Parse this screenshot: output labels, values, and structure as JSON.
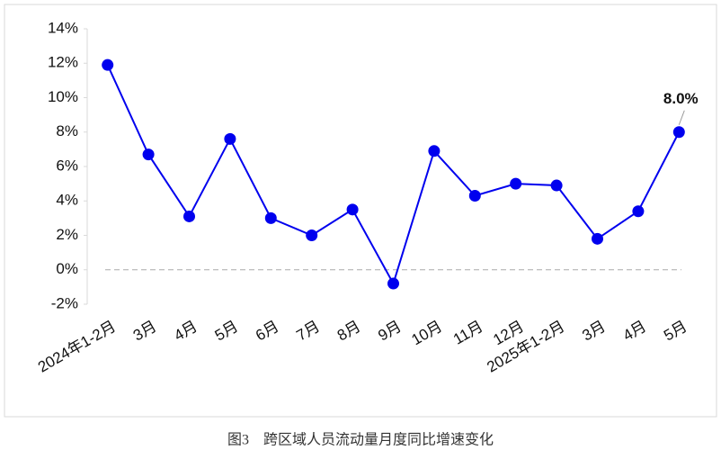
{
  "chart_data": {
    "type": "line",
    "caption": "图3　跨区域人员流动量月度同比增速变化",
    "categories": [
      "2024年1-2月",
      "3月",
      "4月",
      "5月",
      "6月",
      "7月",
      "8月",
      "9月",
      "10月",
      "11月",
      "12月",
      "2025年1-2月",
      "3月",
      "4月",
      "5月"
    ],
    "series": [
      {
        "color": "#0000ee",
        "values": [
          11.9,
          6.7,
          3.1,
          7.6,
          3.0,
          2.0,
          3.5,
          -0.8,
          6.9,
          4.3,
          5.0,
          4.9,
          1.8,
          3.4,
          8.0
        ],
        "value_labels": [
          null,
          null,
          null,
          null,
          null,
          null,
          null,
          null,
          null,
          null,
          null,
          null,
          null,
          null,
          "8.0%"
        ]
      }
    ],
    "ylim": [
      -2,
      14
    ],
    "yticks": [
      {
        "value": -2,
        "label": "-2%"
      },
      {
        "value": 0,
        "label": "0%"
      },
      {
        "value": 2,
        "label": "2%"
      },
      {
        "value": 4,
        "label": "4%"
      },
      {
        "value": 6,
        "label": "6%"
      },
      {
        "value": 8,
        "label": "8%"
      },
      {
        "value": 10,
        "label": "10%"
      },
      {
        "value": 12,
        "label": "12%"
      },
      {
        "value": 14,
        "label": "14%"
      }
    ]
  }
}
